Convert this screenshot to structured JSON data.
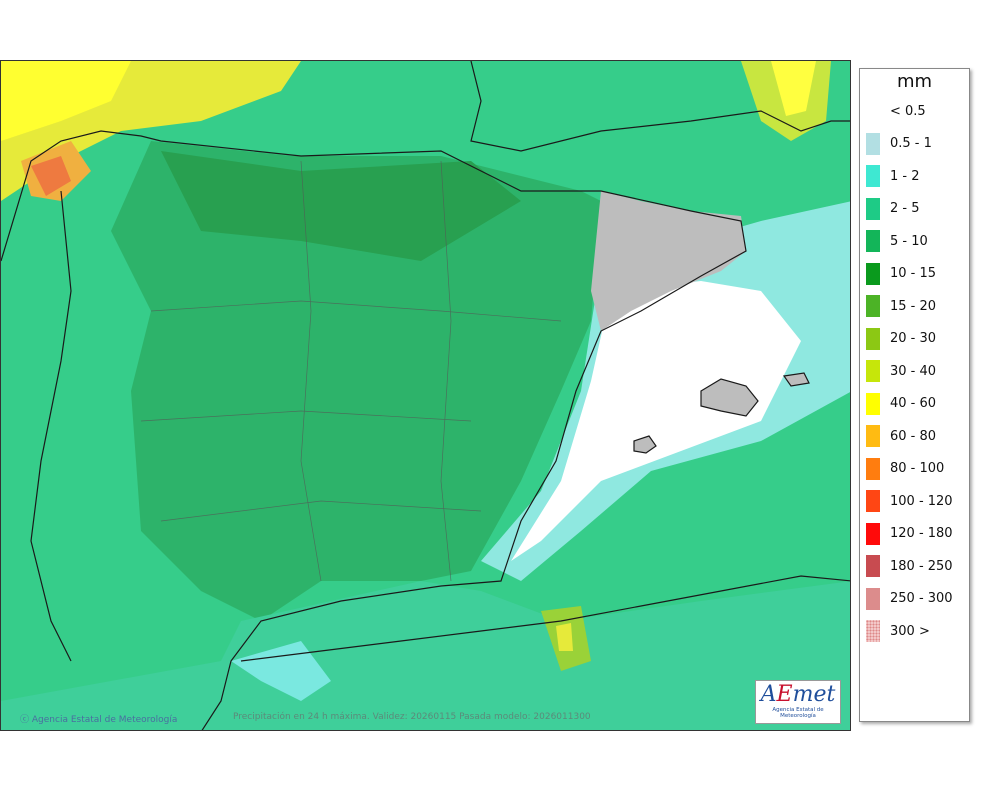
{
  "legend": {
    "unit": "mm",
    "items": [
      {
        "label": "< 0.5",
        "color": ""
      },
      {
        "label": "0.5 - 1",
        "color": "#b2dfe3"
      },
      {
        "label": "1 - 2",
        "color": "#3ee8d2"
      },
      {
        "label": "2 - 5",
        "color": "#1ecb86"
      },
      {
        "label": "5 - 10",
        "color": "#13b559"
      },
      {
        "label": "10 - 15",
        "color": "#0a9a1d"
      },
      {
        "label": "15 - 20",
        "color": "#4cb326"
      },
      {
        "label": "20 - 30",
        "color": "#8cc814"
      },
      {
        "label": "30 - 40",
        "color": "#c6e60a"
      },
      {
        "label": "40 - 60",
        "color": "#ffff00"
      },
      {
        "label": "60 - 80",
        "color": "#ffbb12"
      },
      {
        "label": "80 - 100",
        "color": "#ff7d0f"
      },
      {
        "label": "100 - 120",
        "color": "#ff4614"
      },
      {
        "label": "120 - 180",
        "color": "#ff0a0a"
      },
      {
        "label": "180 - 250",
        "color": "#c84b50"
      },
      {
        "label": "250 - 300",
        "color": "#dc8c8c"
      },
      {
        "label": "300 >",
        "color": "#f3c8c8"
      }
    ]
  },
  "credits": {
    "agency": "Agencia Estatal de Meteorología",
    "caption": "Precipitación en 24 h máxima. Validez: 20260115 Pasada modelo: 2026011300"
  },
  "logo": {
    "text_a": "A",
    "text_e": "E",
    "text_rest": "met",
    "subtitle": "Agencia Estatal de Meteorología"
  }
}
